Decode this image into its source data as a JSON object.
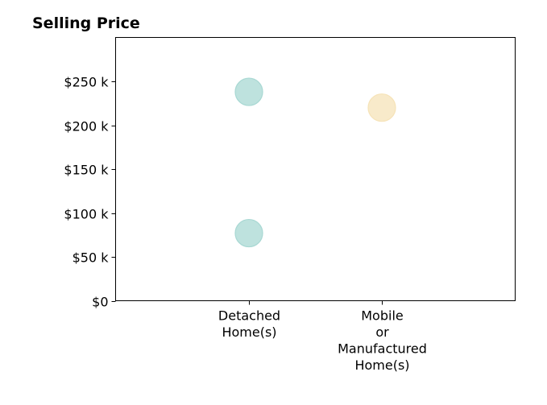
{
  "chart_data": {
    "type": "scatter",
    "title": "Selling Price",
    "xlabel": "",
    "ylabel": "",
    "categories": [
      [
        "Detached",
        "Home(s)"
      ],
      [
        "Mobile",
        "or",
        "Manufactured",
        "Home(s)"
      ]
    ],
    "ylim": [
      0,
      300000
    ],
    "y_ticks": [
      0,
      50000,
      100000,
      150000,
      200000,
      250000
    ],
    "y_tick_labels": [
      "$0",
      "$50 k",
      "$100 k",
      "$150 k",
      "$200 k",
      "$250 k"
    ],
    "grid": false,
    "legend": "none",
    "points": [
      {
        "category": 0,
        "y": 238000,
        "color": "#a8d8d3"
      },
      {
        "category": 0,
        "y": 77000,
        "color": "#a8d8d3"
      },
      {
        "category": 1,
        "y": 220000,
        "color": "#f6e3b8"
      }
    ]
  }
}
